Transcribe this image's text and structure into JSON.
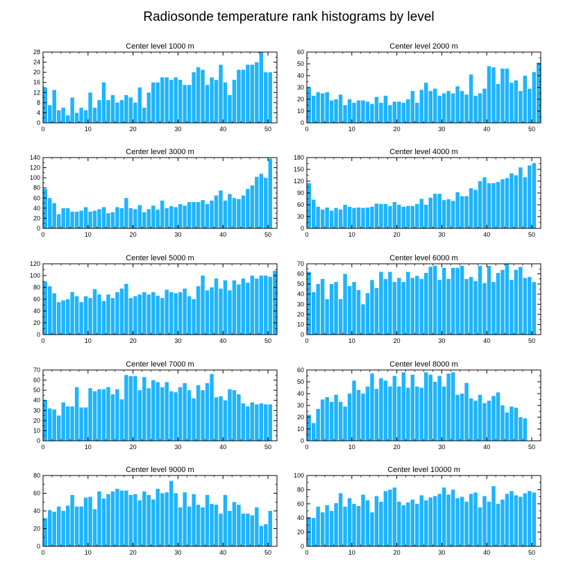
{
  "title": "Radiosonde temperature rank histograms by level",
  "colors": {
    "bar": "#1eb4ff",
    "axis": "#000000",
    "background": "#ffffff"
  },
  "chart_data": [
    {
      "type": "bar",
      "title": "Center level 1000 m",
      "xlim": [
        0,
        52
      ],
      "ylim": [
        0,
        28
      ],
      "xticks": [
        0,
        10,
        20,
        30,
        40,
        50
      ],
      "yticks": [
        0,
        4,
        8,
        12,
        16,
        20,
        24,
        28
      ],
      "values": [
        14,
        7,
        13,
        5,
        6,
        3,
        10,
        4,
        6,
        5,
        12,
        6,
        9,
        16,
        9,
        11,
        8,
        9,
        11,
        10,
        8,
        14,
        6,
        12,
        16,
        16,
        18,
        18,
        17,
        18,
        17,
        15,
        15,
        20,
        22,
        21,
        15,
        18,
        17,
        23,
        16,
        11,
        17,
        21,
        21,
        23,
        23,
        24,
        28,
        20,
        20
      ]
    },
    {
      "type": "bar",
      "title": "Center level 2000 m",
      "xlim": [
        0,
        52
      ],
      "ylim": [
        0,
        60
      ],
      "xticks": [
        0,
        10,
        20,
        30,
        40,
        50
      ],
      "yticks": [
        0,
        10,
        20,
        30,
        40,
        50,
        60
      ],
      "values": [
        30,
        23,
        26,
        25,
        26,
        19,
        20,
        24,
        15,
        20,
        17,
        19,
        19,
        18,
        16,
        22,
        17,
        23,
        15,
        18,
        18,
        17,
        20,
        27,
        17,
        28,
        34,
        27,
        29,
        23,
        25,
        27,
        25,
        31,
        27,
        24,
        41,
        23,
        25,
        29,
        48,
        47,
        33,
        46,
        46,
        34,
        36,
        27,
        40,
        29,
        43,
        51
      ]
    },
    {
      "type": "bar",
      "title": "Center level 3000 m",
      "xlim": [
        0,
        52
      ],
      "ylim": [
        0,
        140
      ],
      "xticks": [
        0,
        10,
        20,
        30,
        40,
        50
      ],
      "yticks": [
        0,
        20,
        40,
        60,
        80,
        100,
        120,
        140
      ],
      "values": [
        78,
        60,
        50,
        28,
        40,
        40,
        33,
        33,
        35,
        42,
        33,
        35,
        38,
        42,
        30,
        32,
        42,
        40,
        60,
        40,
        38,
        46,
        32,
        38,
        45,
        37,
        55,
        40,
        44,
        42,
        48,
        45,
        52,
        52,
        52,
        56,
        48,
        55,
        65,
        75,
        55,
        68,
        60,
        58,
        65,
        78,
        85,
        102,
        108,
        100,
        138
      ]
    },
    {
      "type": "bar",
      "title": "Center level 4000 m",
      "xlim": [
        0,
        52
      ],
      "ylim": [
        0,
        180
      ],
      "xticks": [
        0,
        10,
        20,
        30,
        40,
        50
      ],
      "yticks": [
        0,
        30,
        60,
        90,
        120,
        150,
        180
      ],
      "values": [
        115,
        73,
        55,
        48,
        53,
        45,
        52,
        48,
        60,
        55,
        52,
        53,
        52,
        53,
        55,
        63,
        62,
        62,
        57,
        67,
        60,
        55,
        57,
        57,
        62,
        75,
        60,
        78,
        88,
        88,
        72,
        74,
        70,
        92,
        82,
        82,
        102,
        98,
        120,
        130,
        115,
        115,
        118,
        125,
        128,
        140,
        135,
        155,
        130,
        160,
        166
      ]
    },
    {
      "type": "bar",
      "title": "Center level 5000 m",
      "xlim": [
        0,
        52
      ],
      "ylim": [
        0,
        120
      ],
      "xticks": [
        0,
        10,
        20,
        30,
        40,
        50
      ],
      "yticks": [
        0,
        20,
        40,
        60,
        80,
        100,
        120
      ],
      "values": [
        90,
        82,
        70,
        55,
        58,
        60,
        72,
        65,
        55,
        65,
        62,
        77,
        68,
        57,
        68,
        62,
        72,
        78,
        86,
        62,
        65,
        68,
        72,
        68,
        72,
        66,
        62,
        76,
        72,
        70,
        72,
        78,
        65,
        60,
        82,
        100,
        75,
        80,
        95,
        78,
        92,
        75,
        92,
        85,
        95,
        88,
        100,
        95,
        100,
        100,
        98,
        108
      ]
    },
    {
      "type": "bar",
      "title": "Center level 6000 m",
      "xlim": [
        0,
        52
      ],
      "ylim": [
        0,
        70
      ],
      "xticks": [
        0,
        10,
        20,
        30,
        40,
        50
      ],
      "yticks": [
        0,
        10,
        20,
        30,
        40,
        50,
        60,
        70
      ],
      "values": [
        62,
        42,
        50,
        55,
        35,
        50,
        52,
        35,
        60,
        48,
        52,
        44,
        30,
        41,
        54,
        46,
        62,
        55,
        62,
        52,
        56,
        52,
        62,
        56,
        58,
        55,
        61,
        67,
        68,
        54,
        66,
        55,
        66,
        66,
        68,
        55,
        57,
        53,
        68,
        51,
        68,
        52,
        61,
        64,
        70,
        54,
        64,
        67,
        56,
        57,
        52
      ]
    },
    {
      "type": "bar",
      "title": "Center level 7000 m",
      "xlim": [
        0,
        52
      ],
      "ylim": [
        0,
        70
      ],
      "xticks": [
        0,
        10,
        20,
        30,
        40,
        50
      ],
      "yticks": [
        0,
        10,
        20,
        30,
        40,
        50,
        60,
        70
      ],
      "values": [
        40,
        32,
        31,
        25,
        38,
        34,
        34,
        53,
        33,
        33,
        52,
        49,
        51,
        51,
        53,
        46,
        51,
        41,
        65,
        64,
        64,
        50,
        63,
        52,
        60,
        58,
        53,
        58,
        49,
        48,
        53,
        57,
        50,
        42,
        55,
        50,
        57,
        66,
        43,
        44,
        40,
        51,
        50,
        46,
        37,
        34,
        38,
        36,
        37,
        36,
        36
      ]
    },
    {
      "type": "bar",
      "title": "Center level 8000 m",
      "xlim": [
        0,
        52
      ],
      "ylim": [
        0,
        60
      ],
      "xticks": [
        0,
        10,
        20,
        30,
        40,
        50
      ],
      "yticks": [
        0,
        10,
        20,
        30,
        40,
        50,
        60
      ],
      "values": [
        22,
        15,
        27,
        35,
        37,
        33,
        39,
        33,
        29,
        40,
        51,
        43,
        40,
        46,
        57,
        44,
        53,
        51,
        46,
        55,
        46,
        58,
        45,
        56,
        46,
        45,
        58,
        56,
        50,
        55,
        46,
        57,
        58,
        39,
        40,
        49,
        36,
        34,
        39,
        32,
        34,
        38,
        41,
        30,
        24,
        29,
        28,
        20,
        19
      ]
    },
    {
      "type": "bar",
      "title": "Center level 9000 m",
      "xlim": [
        0,
        52
      ],
      "ylim": [
        0,
        80
      ],
      "xticks": [
        0,
        10,
        20,
        30,
        40,
        50
      ],
      "yticks": [
        0,
        20,
        40,
        60,
        80
      ],
      "values": [
        32,
        41,
        39,
        45,
        40,
        46,
        58,
        45,
        45,
        55,
        56,
        42,
        62,
        54,
        59,
        62,
        65,
        63,
        63,
        58,
        59,
        52,
        62,
        58,
        53,
        65,
        60,
        61,
        74,
        60,
        44,
        61,
        45,
        59,
        47,
        44,
        58,
        48,
        47,
        37,
        58,
        40,
        50,
        47,
        37,
        37,
        35,
        44,
        23,
        25,
        40
      ]
    },
    {
      "type": "bar",
      "title": "Center level 10000 m",
      "xlim": [
        0,
        52
      ],
      "ylim": [
        0,
        100
      ],
      "xticks": [
        0,
        10,
        20,
        30,
        40,
        50
      ],
      "yticks": [
        0,
        20,
        40,
        60,
        80,
        100
      ],
      "values": [
        41,
        40,
        56,
        48,
        58,
        50,
        61,
        75,
        56,
        68,
        60,
        57,
        73,
        65,
        48,
        71,
        63,
        78,
        80,
        83,
        63,
        58,
        62,
        66,
        60,
        72,
        65,
        69,
        71,
        74,
        83,
        73,
        80,
        68,
        70,
        63,
        74,
        76,
        55,
        71,
        63,
        85,
        60,
        66,
        74,
        78,
        72,
        70,
        75,
        78,
        76
      ]
    }
  ]
}
